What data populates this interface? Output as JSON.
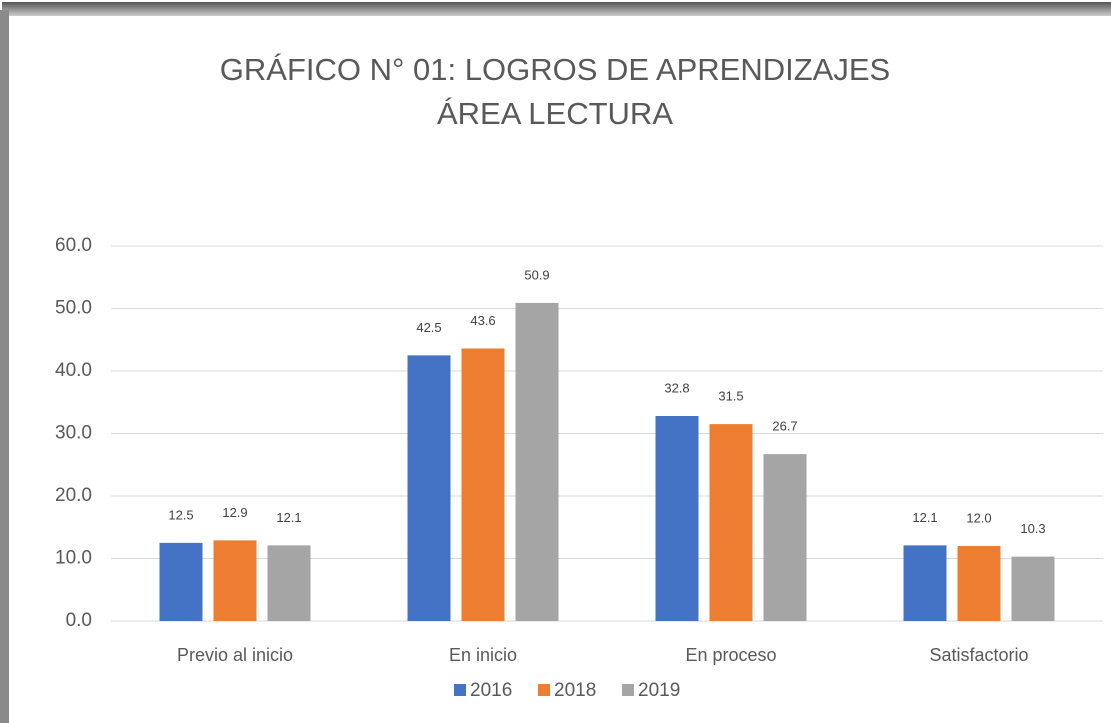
{
  "chart_data": {
    "type": "bar",
    "title": "GRÁFICO N° 01: LOGROS DE APRENDIZAJES ÁREA LECTURA",
    "categories": [
      "Previo al inicio",
      "En inicio",
      "En proceso",
      "Satisfactorio"
    ],
    "series": [
      {
        "name": "2016",
        "color": "#4472c4",
        "values": [
          12.5,
          42.5,
          32.8,
          12.1
        ],
        "value_labels": [
          "12.5",
          "42.5",
          "32.8",
          "12.1"
        ]
      },
      {
        "name": "2018",
        "color": "#ed7d31",
        "values": [
          12.9,
          43.6,
          31.5,
          12.0
        ],
        "value_labels": [
          "12.9",
          "43.6",
          "31.5",
          "12.0"
        ]
      },
      {
        "name": "2019",
        "color": "#a5a5a5",
        "values": [
          12.1,
          50.9,
          26.7,
          10.3
        ],
        "value_labels": [
          "12.1",
          "50.9",
          "26.7",
          "10.3"
        ]
      }
    ],
    "ylim": [
      0,
      60
    ],
    "yticks": [
      {
        "value": 0,
        "label": "0.0"
      },
      {
        "value": 10,
        "label": "10.0"
      },
      {
        "value": 20,
        "label": "20.0"
      },
      {
        "value": 30,
        "label": "30.0"
      },
      {
        "value": 40,
        "label": "40.0"
      },
      {
        "value": 50,
        "label": "50.0"
      },
      {
        "value": 60,
        "label": "60.0"
      }
    ],
    "grid": true,
    "legend": "bottom"
  }
}
